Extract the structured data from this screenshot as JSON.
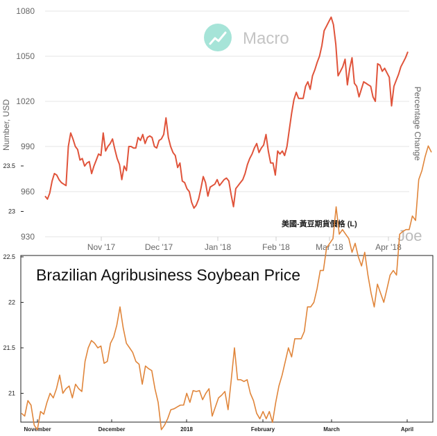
{
  "chart_data": [
    {
      "type": "line",
      "title": "",
      "watermark_logo": "Macro",
      "watermark_signature": "Joe",
      "ylabel": "Number, USD",
      "ylabel_right": "Percentage Change",
      "legend": "美國-黃豆期貨價格 (L)",
      "ylim": [
        930,
        1085
      ],
      "yticks": [
        "930",
        "960",
        "990",
        "1020",
        "1050",
        "1080"
      ],
      "xtick_labels": [
        "Nov '17",
        "Dec '17",
        "Jan '18",
        "Feb '18",
        "Mar '18",
        "Apr '18"
      ],
      "grid": "horizontal",
      "line_color": "#e0533a",
      "series": [
        {
          "values": [
            957,
            955,
            959,
            967,
            972,
            971,
            968,
            966,
            965,
            964,
            990,
            999,
            995,
            990,
            988,
            981,
            982,
            977,
            979,
            980,
            972,
            977,
            981,
            985,
            984,
            999,
            987,
            990,
            992,
            995,
            988,
            982,
            978,
            968,
            977,
            974,
            990,
            990,
            989,
            989,
            996,
            994,
            998,
            992,
            996,
            997,
            996,
            990,
            989,
            994,
            995,
            998,
            1009,
            996,
            990,
            986,
            984,
            976,
            979,
            967,
            966,
            962,
            960,
            953,
            949,
            951,
            955,
            962,
            970,
            966,
            957,
            963,
            964,
            965,
            968,
            964,
            966,
            968,
            969,
            967,
            958,
            950,
            962,
            964,
            966,
            968,
            972,
            978,
            982,
            985,
            989,
            992,
            986,
            989,
            991,
            998,
            987,
            979,
            979,
            971,
            987,
            985,
            987,
            984,
            990,
            1001,
            1012,
            1021,
            1026,
            1022,
            1022,
            1022,
            1030,
            1033,
            1028,
            1037,
            1041,
            1046,
            1050,
            1057,
            1067,
            1070,
            1073,
            1076,
            1071,
            1058,
            1037,
            1040,
            1043,
            1048,
            1031,
            1042,
            1049,
            1032,
            1030,
            1023,
            1028,
            1033,
            1032,
            1031,
            1030,
            1023,
            1020,
            1045,
            1044,
            1040,
            1042,
            1039,
            1036,
            1017,
            1030,
            1034,
            1038,
            1043,
            1046,
            1049,
            1053
          ]
        }
      ]
    },
    {
      "type": "line",
      "title": "Brazilian Agribusiness  Soybean Price",
      "xlabel": "",
      "ylabel": "",
      "ylim": [
        20.5,
        23.85
      ],
      "yticks": [
        "21",
        "21.5",
        "22",
        "22.5",
        "23",
        "23.5"
      ],
      "xtick_labels": [
        "November",
        "December",
        "2018",
        "February",
        "March",
        "April"
      ],
      "grid": "none",
      "line_color": "#e0853a",
      "series": [
        {
          "values": [
            20.78,
            20.75,
            20.92,
            20.87,
            20.65,
            20.6,
            20.8,
            20.77,
            20.9,
            21,
            20.95,
            21.05,
            21.2,
            21,
            21.05,
            21.08,
            20.95,
            21.1,
            21.05,
            21.02,
            21.35,
            21.5,
            21.58,
            21.55,
            21.5,
            21.52,
            21.33,
            21.35,
            21.55,
            21.62,
            21.75,
            21.95,
            21.72,
            21.55,
            21.5,
            21.45,
            21.35,
            21.32,
            21.1,
            21.3,
            21.27,
            21.25,
            21.05,
            20.9,
            20.6,
            20.65,
            20.72,
            20.82,
            20.83,
            20.85,
            20.87,
            20.87,
            21,
            20.9,
            21.03,
            21.02,
            21.03,
            20.93,
            21,
            21.05,
            20.75,
            20.85,
            20.95,
            20.98,
            21.02,
            20.82,
            21.15,
            21.5,
            21.15,
            21.15,
            21.13,
            21.15,
            21,
            20.92,
            20.78,
            20.72,
            20.8,
            20.72,
            20.8,
            20.68,
            20.9,
            21.08,
            21.2,
            21.35,
            21.5,
            21.4,
            21.6,
            21.6,
            21.6,
            21.68,
            21.95,
            21.95,
            22,
            22.15,
            22.35,
            22.35,
            22.6,
            22.65,
            22.7,
            23.05,
            22.75,
            22.8,
            22.75,
            22.7,
            22.55,
            22.65,
            22.5,
            22.4,
            22.55,
            22.3,
            22.1,
            21.95,
            22.2,
            22.1,
            22,
            22.15,
            22.3,
            22.35,
            22.3,
            22.75,
            22.78,
            22.8,
            22.8,
            22.95,
            22.9,
            23.35,
            23.45,
            23.6,
            23.72,
            23.65
          ]
        }
      ]
    }
  ]
}
